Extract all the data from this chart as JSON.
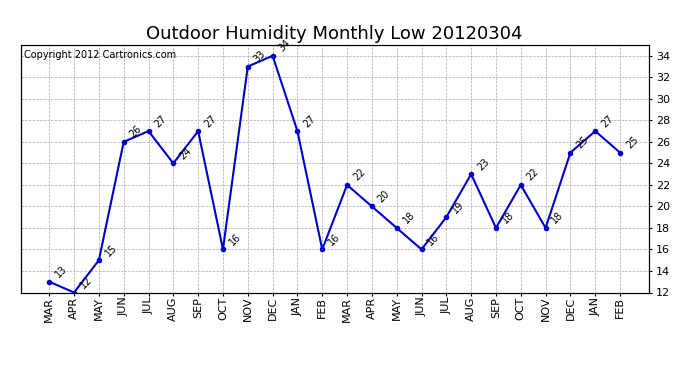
{
  "title": "Outdoor Humidity Monthly Low 20120304",
  "copyright": "Copyright 2012 Cartronics.com",
  "x_labels": [
    "MAR",
    "APR",
    "MAY",
    "JUN",
    "JUL",
    "AUG",
    "SEP",
    "OCT",
    "NOV",
    "DEC",
    "JAN",
    "FEB",
    "MAR",
    "APR",
    "MAY",
    "JUN",
    "JUL",
    "AUG",
    "SEP",
    "OCT",
    "NOV",
    "DEC",
    "JAN",
    "FEB"
  ],
  "y_values": [
    13,
    12,
    15,
    26,
    27,
    24,
    27,
    16,
    33,
    34,
    27,
    16,
    22,
    20,
    18,
    16,
    19,
    23,
    18,
    22,
    18,
    25,
    27,
    25
  ],
  "line_color": "#0000cc",
  "marker_color": "#0000cc",
  "ylim_min": 12,
  "ylim_max": 35,
  "yticks": [
    12,
    14,
    16,
    18,
    20,
    22,
    24,
    26,
    28,
    30,
    32,
    34
  ],
  "grid_color": "#aaaaaa",
  "bg_color": "#ffffff",
  "title_fontsize": 13,
  "annotation_fontsize": 7,
  "copyright_fontsize": 7,
  "tick_fontsize": 8
}
